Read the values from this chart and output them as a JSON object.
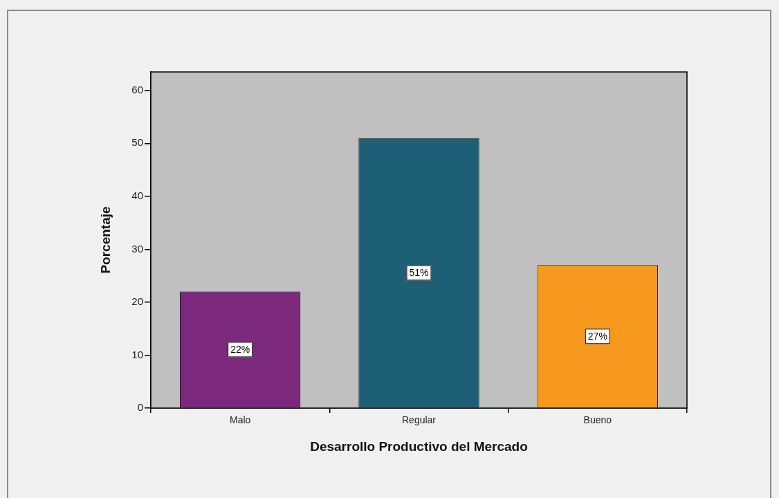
{
  "chart_data": {
    "type": "bar",
    "xlabel": "Desarrollo Productivo del Mercado",
    "ylabel": "Porcentaje",
    "categories": [
      "Malo",
      "Regular",
      "Bueno"
    ],
    "values": [
      22,
      51,
      27
    ],
    "colors": [
      "#7b287d",
      "#1d5f75",
      "#f7981f"
    ],
    "value_labels": [
      "22%",
      "51%",
      "27%"
    ],
    "ylim": [
      0,
      63.5
    ],
    "yticks": [
      0,
      10,
      20,
      30,
      40,
      50,
      60
    ],
    "grid": false,
    "legend": false
  }
}
